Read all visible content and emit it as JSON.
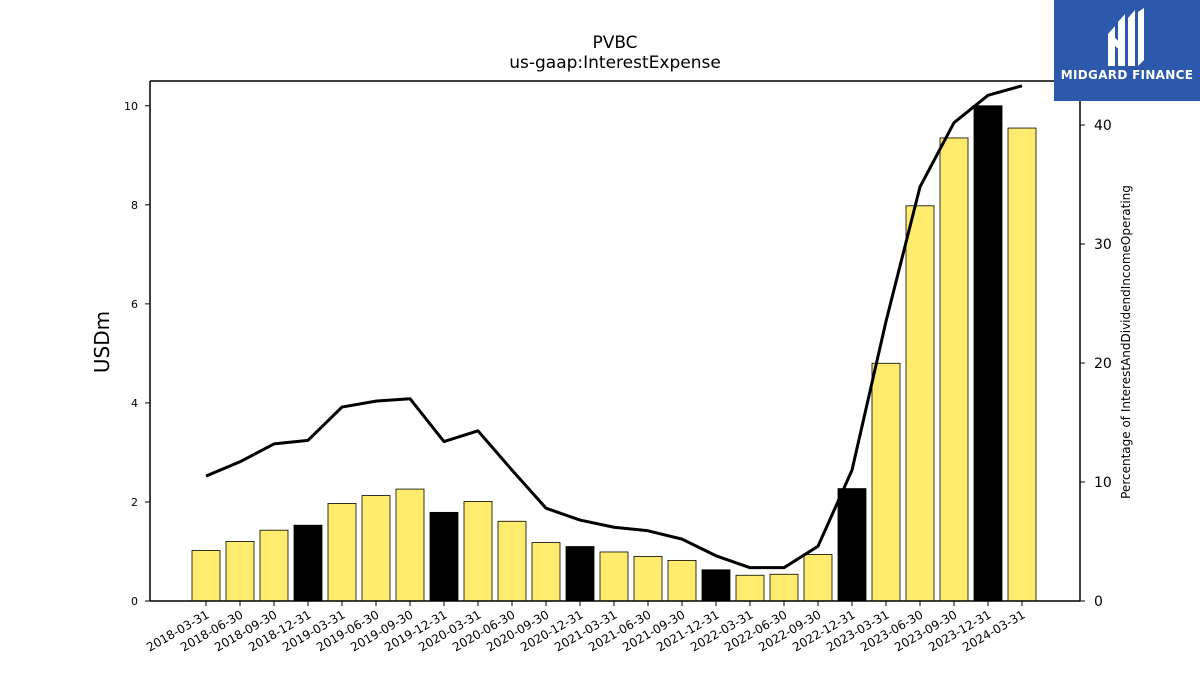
{
  "chart_data": {
    "type": "bar",
    "title": "PVBC",
    "subtitle": "us-gaap:InterestExpense",
    "ylabel": "USDm",
    "y2label": "Percentage of InterestAndDividendIncomeOperating",
    "ylim": [
      0,
      10.5
    ],
    "y2lim": [
      0,
      43.7
    ],
    "yticks": [
      0,
      2,
      4,
      6,
      8,
      10
    ],
    "y2ticks": [
      0,
      10,
      20,
      30,
      40
    ],
    "categories": [
      "2018-03-31",
      "2018-06-30",
      "2018-09-30",
      "2018-12-31",
      "2019-03-31",
      "2019-06-30",
      "2019-09-30",
      "2019-12-31",
      "2020-03-31",
      "2020-06-30",
      "2020-09-30",
      "2020-12-31",
      "2021-03-31",
      "2021-06-30",
      "2021-09-30",
      "2021-12-31",
      "2022-03-31",
      "2022-06-30",
      "2022-09-30",
      "2022-12-31",
      "2023-03-31",
      "2023-06-30",
      "2023-09-30",
      "2023-12-31",
      "2024-03-31"
    ],
    "series": [
      {
        "kind": "bar",
        "values": [
          1.02,
          1.2,
          1.43,
          1.53,
          1.97,
          2.13,
          2.26,
          1.79,
          2.01,
          1.61,
          1.18,
          1.1,
          0.99,
          0.9,
          0.82,
          0.63,
          0.52,
          0.54,
          0.94,
          2.27,
          4.8,
          7.98,
          9.35,
          10.0,
          9.55
        ],
        "highlight": [
          false,
          false,
          false,
          true,
          false,
          false,
          false,
          true,
          false,
          false,
          false,
          true,
          false,
          false,
          false,
          true,
          false,
          false,
          false,
          true,
          false,
          false,
          false,
          true,
          false
        ]
      },
      {
        "kind": "line",
        "axis": "right",
        "values": [
          10.5,
          11.7,
          13.2,
          13.5,
          16.3,
          16.8,
          17.0,
          13.4,
          14.3,
          11.0,
          7.8,
          6.8,
          6.2,
          5.9,
          5.2,
          3.8,
          2.8,
          2.8,
          4.6,
          11.0,
          23.5,
          34.8,
          40.2,
          42.5,
          43.3
        ]
      }
    ],
    "colors": {
      "bar": "#ffec6e",
      "bar_highlight": "#000000",
      "line": "#000000",
      "edge": "#000000"
    },
    "legend": "none",
    "grid": false
  },
  "logo": {
    "name": "MIDGARD FINANCE",
    "background": "#2d59ac"
  }
}
